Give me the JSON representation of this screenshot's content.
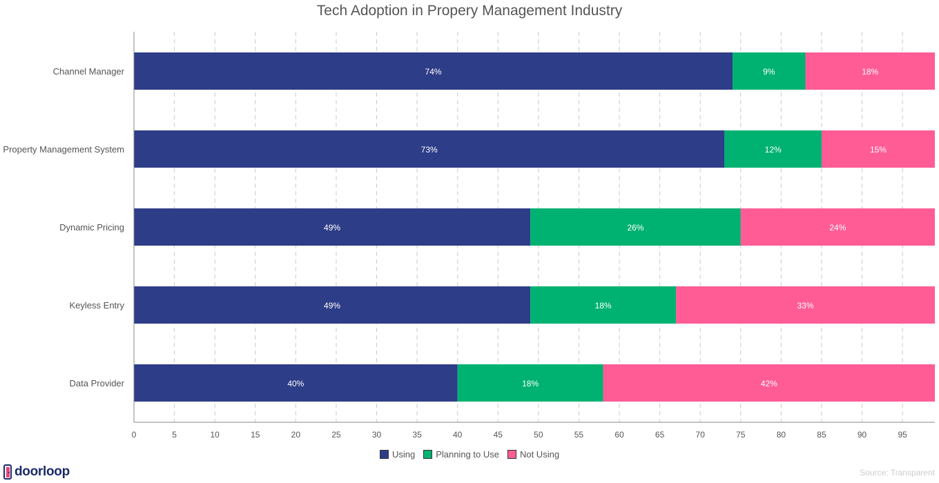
{
  "chart_data": {
    "type": "bar",
    "orientation": "horizontal",
    "stacked": true,
    "title": "Tech Adoption in Propery Management Industry",
    "categories": [
      "Channel Manager",
      "Property Management System",
      "Dynamic Pricing",
      "Keyless Entry",
      "Data Provider"
    ],
    "series": [
      {
        "name": "Using",
        "color": "#2e3d87",
        "values": [
          74,
          73,
          49,
          49,
          40
        ],
        "labels": [
          "74%",
          "73%",
          "49%",
          "49%",
          "40%"
        ]
      },
      {
        "name": "Planning to Use",
        "color": "#00b272",
        "values": [
          9,
          12,
          26,
          18,
          18
        ],
        "labels": [
          "9%",
          "12%",
          "26%",
          "18%",
          "18%"
        ]
      },
      {
        "name": "Not Using",
        "color": "#ff5c96",
        "values": [
          18,
          15,
          24,
          33,
          42
        ],
        "labels": [
          "18%",
          "15%",
          "24%",
          "33%",
          "42%"
        ]
      }
    ],
    "xlim": [
      0,
      99
    ],
    "xticks": [
      0,
      5,
      10,
      15,
      20,
      25,
      30,
      35,
      40,
      45,
      50,
      55,
      60,
      65,
      70,
      75,
      80,
      85,
      90,
      95
    ],
    "xlabel": "",
    "ylabel": "",
    "grid": "vertical dashed",
    "legend_position": "bottom-center"
  },
  "branding": {
    "logo_text": "doorloop",
    "source_text": "Source: Transparent"
  },
  "colors": {
    "grid": "#c9c9c9",
    "axis": "#888888",
    "text": "#555555",
    "logo_mark": "#e8457f"
  }
}
